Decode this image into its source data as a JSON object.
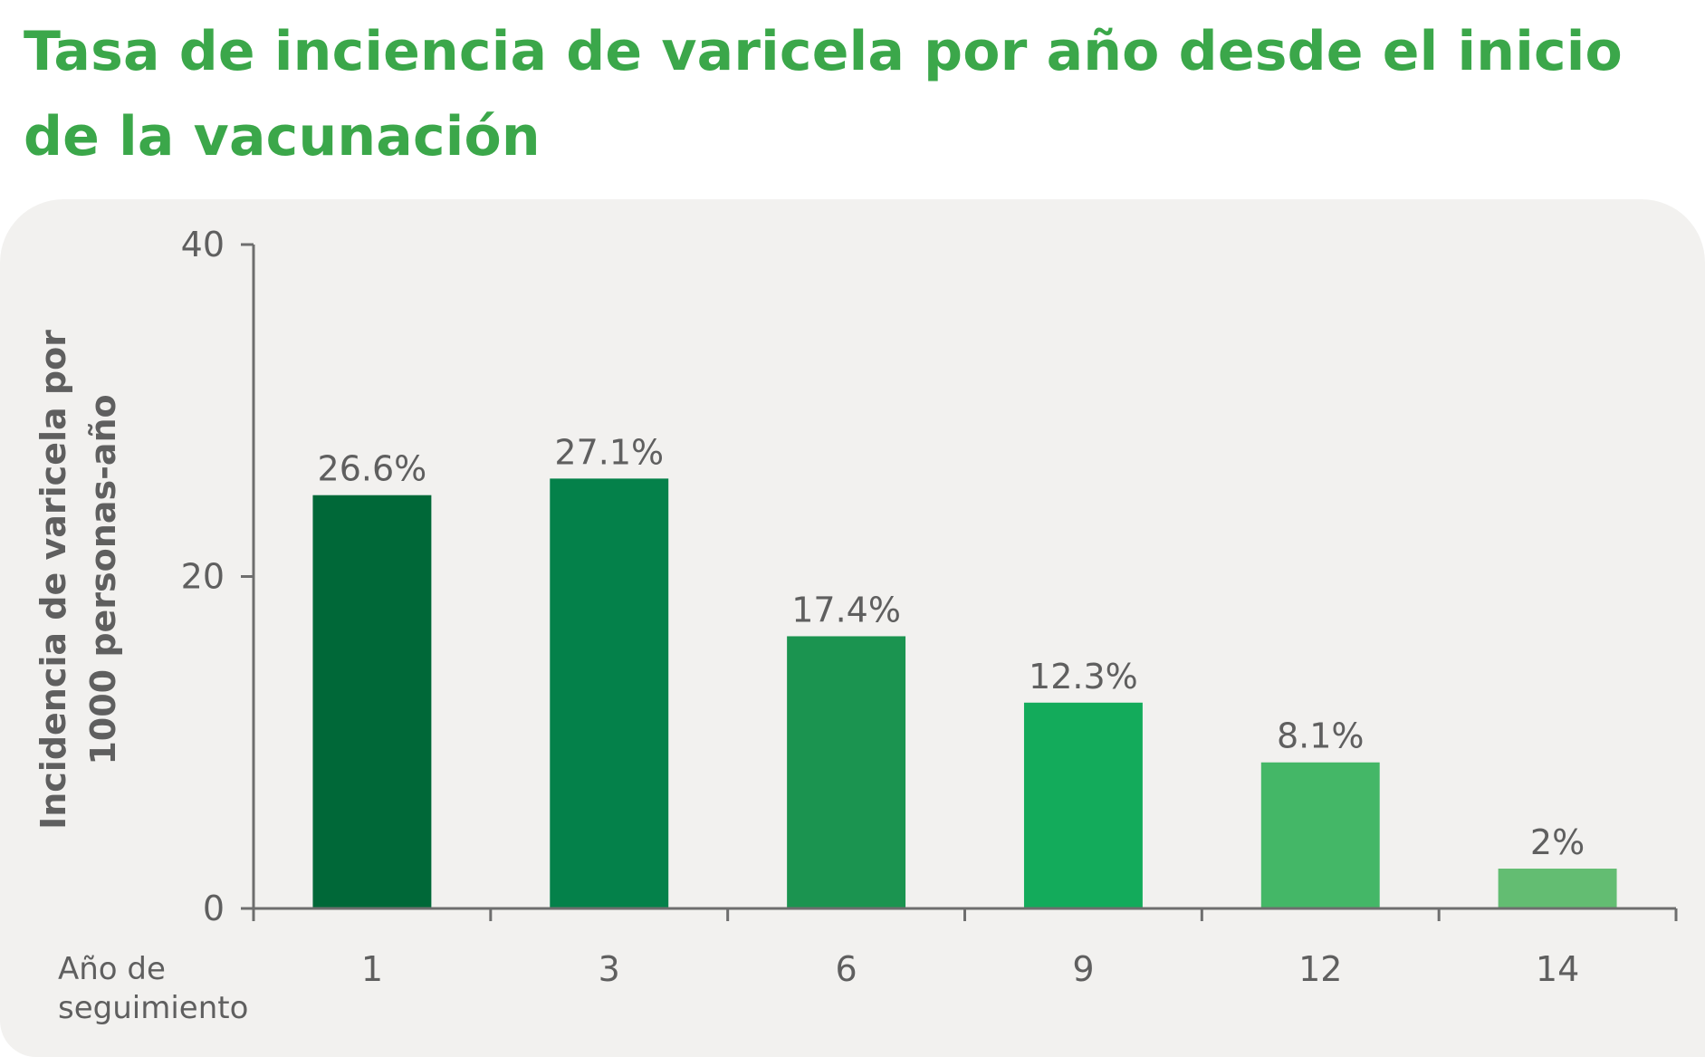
{
  "title": "Tasa de inciencia de varicela por año desde el inicio de la vacunación",
  "chart_data": {
    "type": "bar",
    "title": "Tasa de inciencia de varicela por año desde el inicio de la vacunación",
    "ylabel_line1": "Incidencia de varicela por",
    "ylabel_line2": "1000 personas-año",
    "xlabel_line1": "Año de",
    "xlabel_line2": "seguimiento",
    "categories": [
      "1",
      "3",
      "6",
      "9",
      "12",
      "14"
    ],
    "values": [
      24.9,
      25.9,
      16.4,
      12.4,
      8.8,
      2.4
    ],
    "data_labels": [
      "26.6%",
      "27.1%",
      "17.4%",
      "12.3%",
      "8.1%",
      "2%"
    ],
    "yticks": [
      "0",
      "20",
      "40"
    ],
    "ylim": [
      0,
      40
    ],
    "grid": false,
    "legend": "none",
    "colors": [
      "#006838",
      "#04814a",
      "#1b9450",
      "#13ab5b",
      "#44b767",
      "#63bd72"
    ]
  }
}
